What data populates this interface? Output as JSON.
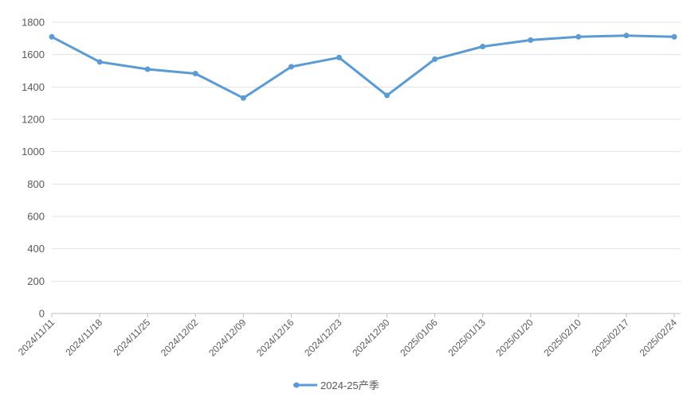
{
  "chart_data": {
    "type": "line",
    "title": "",
    "xlabel": "",
    "ylabel": "",
    "categories": [
      "2024/11/11",
      "2024/11/18",
      "2024/11/25",
      "2024/12/02",
      "2024/12/09",
      "2024/12/16",
      "2024/12/23",
      "2024/12/30",
      "2025/01/06",
      "2025/01/13",
      "2025/01/20",
      "2025/02/10",
      "2025/02/17",
      "2025/02/24"
    ],
    "series": [
      {
        "name": "2024-25产季",
        "color": "#5b9bd5",
        "values": [
          1710,
          1555,
          1510,
          1483,
          1332,
          1525,
          1582,
          1348,
          1572,
          1650,
          1690,
          1710,
          1718,
          1710
        ]
      }
    ],
    "ylim": [
      0,
      1800
    ],
    "yticks": [
      0,
      200,
      400,
      600,
      800,
      1000,
      1200,
      1400,
      1600,
      1800
    ],
    "grid": true,
    "legend": "bottom-center"
  }
}
